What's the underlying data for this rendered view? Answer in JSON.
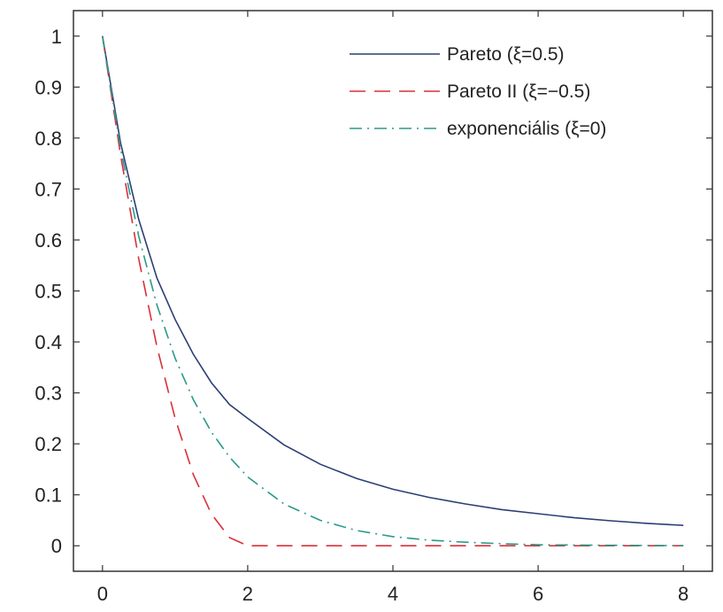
{
  "chart_data": {
    "type": "line",
    "title": "",
    "xlabel": "",
    "ylabel": "",
    "xlim": [
      -0.4,
      8.4
    ],
    "ylim": [
      -0.05,
      1.05
    ],
    "grid": false,
    "legend_position": "top-right",
    "x_ticks": [
      0,
      2,
      4,
      6,
      8
    ],
    "x_tick_labels": [
      "0",
      "2",
      "4",
      "6",
      "8"
    ],
    "y_ticks": [
      0,
      0.1,
      0.2,
      0.3,
      0.4,
      0.5,
      0.6,
      0.7,
      0.8,
      0.9,
      1
    ],
    "y_tick_labels": [
      "0",
      "0.1",
      "0.2",
      "0.3",
      "0.4",
      "0.5",
      "0.6",
      "0.7",
      "0.8",
      "0.9",
      "1"
    ],
    "series": [
      {
        "name": "Pareto (ξ=0.5)",
        "color": "#2b3f73",
        "dash": "solid",
        "x": [
          0,
          0.25,
          0.5,
          0.75,
          1,
          1.25,
          1.5,
          1.75,
          2,
          2.5,
          3,
          3.5,
          4,
          4.5,
          5,
          5.5,
          6,
          6.5,
          7,
          7.5,
          8
        ],
        "y": [
          1,
          0.79,
          0.64,
          0.525,
          0.444,
          0.376,
          0.32,
          0.277,
          0.25,
          0.198,
          0.16,
          0.132,
          0.111,
          0.095,
          0.082,
          0.071,
          0.063,
          0.055,
          0.049,
          0.044,
          0.04
        ]
      },
      {
        "name": "Pareto II (ξ=−0.5)",
        "color": "#d9303a",
        "dash": "dashed",
        "x": [
          0,
          0.25,
          0.5,
          0.75,
          1,
          1.25,
          1.5,
          1.75,
          2,
          2.5,
          3,
          4,
          5,
          6,
          7,
          8
        ],
        "y": [
          1,
          0.766,
          0.5625,
          0.39,
          0.25,
          0.14,
          0.0625,
          0.016,
          0,
          0,
          0,
          0,
          0,
          0,
          0,
          0
        ]
      },
      {
        "name": "exponenciális (ξ=0)",
        "color": "#2a9a8a",
        "dash": "dashdot",
        "x": [
          0,
          0.25,
          0.5,
          0.75,
          1,
          1.25,
          1.5,
          1.75,
          2,
          2.5,
          3,
          3.5,
          4,
          4.5,
          5,
          5.5,
          6,
          6.5,
          7,
          7.5,
          8
        ],
        "y": [
          1,
          0.779,
          0.607,
          0.472,
          0.368,
          0.287,
          0.223,
          0.174,
          0.135,
          0.082,
          0.05,
          0.03,
          0.018,
          0.011,
          0.007,
          0.004,
          0.002,
          0.0015,
          0.001,
          0.0006,
          0.0003
        ]
      }
    ]
  }
}
